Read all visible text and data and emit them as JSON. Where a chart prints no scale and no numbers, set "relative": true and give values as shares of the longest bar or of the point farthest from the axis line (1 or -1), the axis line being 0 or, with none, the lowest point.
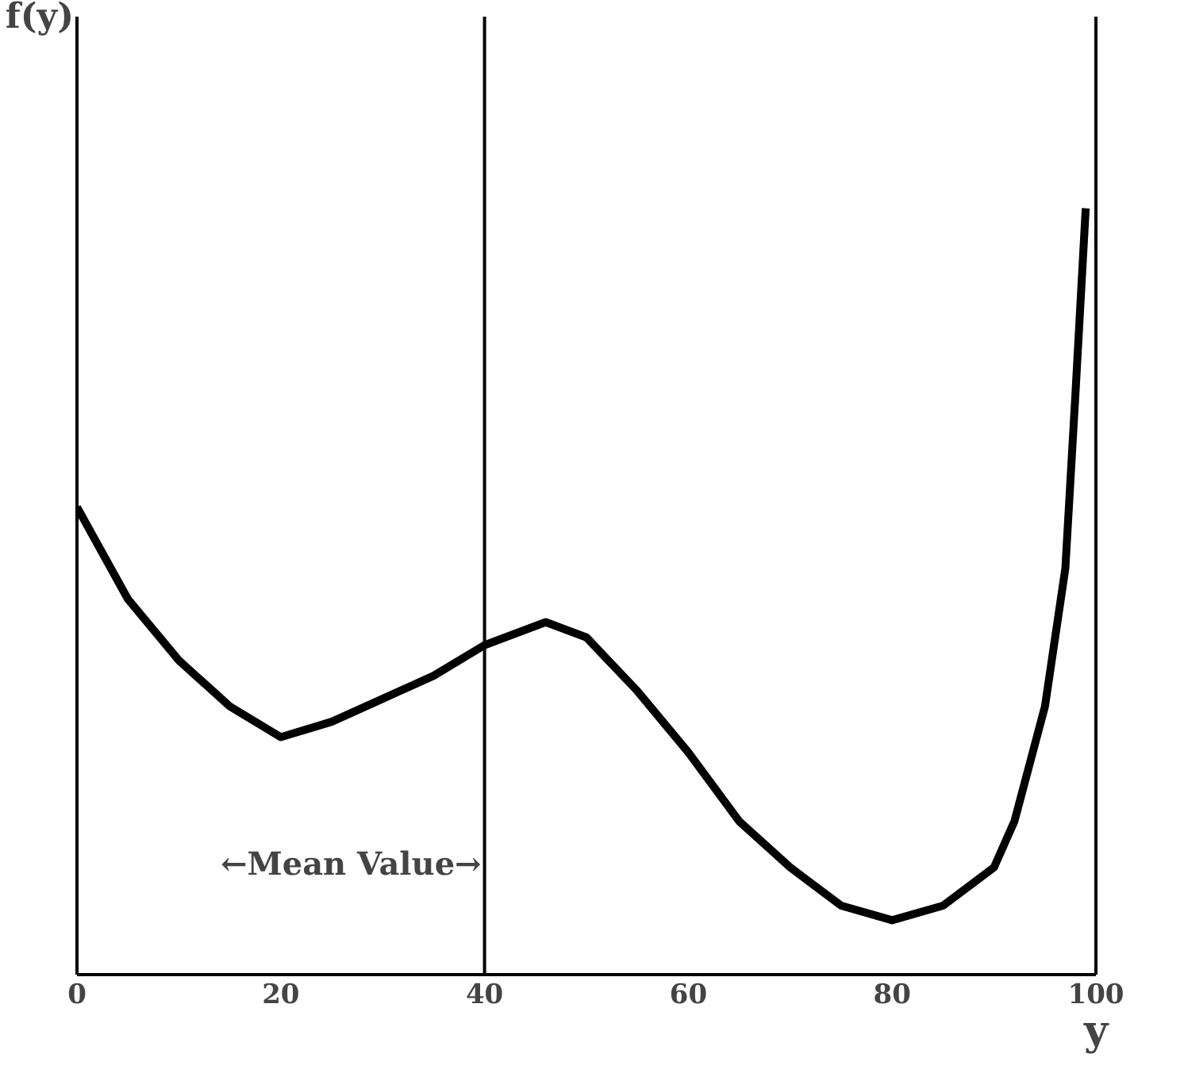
{
  "chart_data": {
    "type": "line",
    "relative": true,
    "ylabel": "f(y)",
    "xlabel": "y",
    "x": [
      0,
      5,
      10,
      15,
      20,
      25,
      30,
      35,
      40,
      46,
      50,
      55,
      60,
      65,
      70,
      75,
      80,
      85,
      90,
      92,
      95,
      97,
      98,
      99
    ],
    "series": [
      {
        "color": "#000000",
        "values": [
          0.61,
          0.49,
          0.41,
          0.35,
          0.31,
          0.33,
          0.36,
          0.39,
          0.43,
          0.46,
          0.44,
          0.37,
          0.29,
          0.2,
          0.14,
          0.09,
          0.071,
          0.09,
          0.14,
          0.2,
          0.35,
          0.53,
          0.76,
          1
        ]
      }
    ],
    "xlim": [
      0,
      100
    ],
    "xticks": [
      0,
      20,
      40,
      60,
      80,
      100
    ],
    "ref_lines": [
      {
        "axis": "x",
        "value": 40,
        "label": "←Mean Value→"
      }
    ],
    "grid": false,
    "line_style": "solid",
    "marker": "none"
  }
}
